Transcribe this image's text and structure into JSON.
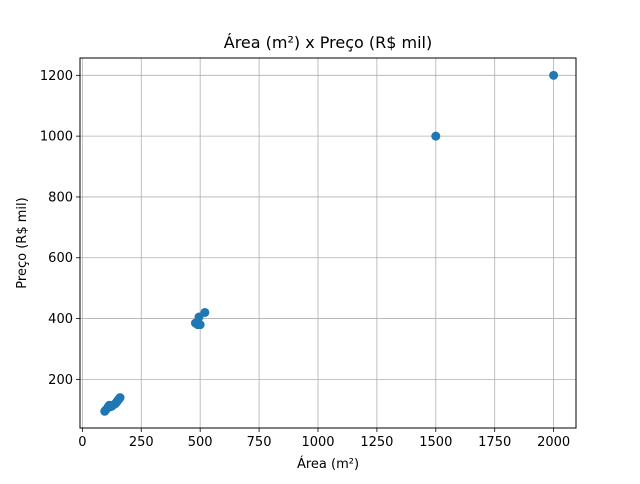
{
  "chart_data": {
    "type": "scatter",
    "title": "Área (m²) x Preço (R$ mil)",
    "xlabel": "Área (m²)",
    "ylabel": "Preço (R$ mil)",
    "xlim": [
      -10,
      2095
    ],
    "ylim": [
      40,
      1257
    ],
    "xticks": [
      0,
      250,
      500,
      750,
      1000,
      1250,
      1500,
      1750,
      2000
    ],
    "yticks": [
      200,
      400,
      600,
      800,
      1000,
      1200
    ],
    "grid": true,
    "legend": "none",
    "marker_color": "#1f77b4",
    "x": [
      95,
      100,
      110,
      115,
      120,
      125,
      130,
      140,
      145,
      150,
      155,
      160,
      480,
      490,
      500,
      495,
      520,
      1500,
      2000
    ],
    "y": [
      95,
      100,
      110,
      115,
      110,
      112,
      115,
      120,
      125,
      130,
      135,
      140,
      385,
      380,
      380,
      405,
      420,
      1000,
      1200
    ]
  }
}
